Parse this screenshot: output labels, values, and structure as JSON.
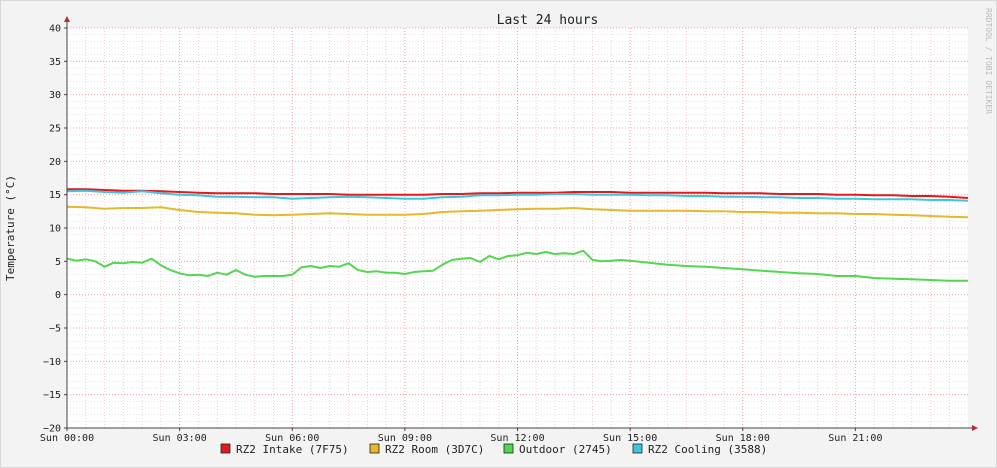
{
  "chart_data": {
    "type": "line",
    "title": "Last 24 hours",
    "ylabel": "Temperature (°C)",
    "xlabel": "",
    "ylim": [
      -20,
      40
    ],
    "y_ticks": [
      40,
      35,
      30,
      25,
      20,
      15,
      10,
      5,
      0,
      -5,
      -10,
      -15,
      -20
    ],
    "y_tick_labels": [
      "40",
      "35",
      "30",
      "25",
      "20",
      "15",
      "10",
      "5",
      "0",
      "−5",
      "−10",
      "−15",
      "−20"
    ],
    "x_unit": "hours since Sun 00:00",
    "xlim": [
      0,
      24
    ],
    "x_ticks": [
      0,
      3,
      6,
      9,
      12,
      15,
      18,
      21
    ],
    "x_tick_labels": [
      "Sun 00:00",
      "Sun 03:00",
      "Sun 06:00",
      "Sun 09:00",
      "Sun 12:00",
      "Sun 15:00",
      "Sun 18:00",
      "Sun 21:00"
    ],
    "grid": true,
    "legend_position": "bottom",
    "series": [
      {
        "name": "RZ2 Intake (7F75)",
        "color": "#e31a1c",
        "x": [
          0,
          0.5,
          1,
          1.5,
          2,
          2.5,
          3,
          3.5,
          4,
          4.5,
          5,
          5.5,
          6,
          6.5,
          7,
          7.5,
          8,
          8.5,
          9,
          9.5,
          10,
          10.5,
          11,
          11.5,
          12,
          12.5,
          13,
          13.5,
          14,
          14.5,
          15,
          15.5,
          16,
          16.5,
          17,
          17.5,
          18,
          18.5,
          19,
          19.5,
          20,
          20.5,
          21,
          21.5,
          22,
          22.5,
          23,
          23.5,
          24
        ],
        "y": [
          15.8,
          15.8,
          15.7,
          15.6,
          15.6,
          15.5,
          15.4,
          15.3,
          15.2,
          15.2,
          15.2,
          15.1,
          15.1,
          15.1,
          15.1,
          15.0,
          15.0,
          15.0,
          15.0,
          15.0,
          15.1,
          15.1,
          15.2,
          15.2,
          15.3,
          15.3,
          15.3,
          15.4,
          15.4,
          15.4,
          15.3,
          15.3,
          15.3,
          15.3,
          15.3,
          15.2,
          15.2,
          15.2,
          15.1,
          15.1,
          15.1,
          15.0,
          15.0,
          14.9,
          14.9,
          14.8,
          14.8,
          14.7,
          14.5
        ]
      },
      {
        "name": "RZ2 Room (3D7C)",
        "color": "#e6b92a",
        "x": [
          0,
          0.5,
          1,
          1.5,
          2,
          2.5,
          3,
          3.5,
          4,
          4.5,
          5,
          5.5,
          6,
          6.5,
          7,
          7.5,
          8,
          8.5,
          9,
          9.5,
          10,
          10.5,
          11,
          11.5,
          12,
          12.5,
          13,
          13.5,
          14,
          14.5,
          15,
          15.5,
          16,
          16.5,
          17,
          17.5,
          18,
          18.5,
          19,
          19.5,
          20,
          20.5,
          21,
          21.5,
          22,
          22.5,
          23,
          23.5,
          24
        ],
        "y": [
          13.2,
          13.1,
          12.9,
          13.0,
          13.0,
          13.1,
          12.7,
          12.4,
          12.3,
          12.2,
          12.0,
          11.9,
          12.0,
          12.1,
          12.2,
          12.1,
          12.0,
          12.0,
          12.0,
          12.1,
          12.4,
          12.5,
          12.6,
          12.7,
          12.8,
          12.9,
          12.9,
          13.0,
          12.8,
          12.7,
          12.6,
          12.6,
          12.6,
          12.6,
          12.5,
          12.5,
          12.4,
          12.4,
          12.3,
          12.3,
          12.2,
          12.2,
          12.1,
          12.1,
          12.0,
          11.9,
          11.8,
          11.7,
          11.6
        ]
      },
      {
        "name": "Outdoor (2745)",
        "color": "#55d651",
        "x": [
          0,
          0.25,
          0.5,
          0.75,
          1,
          1.25,
          1.5,
          1.75,
          2,
          2.25,
          2.5,
          2.75,
          3,
          3.25,
          3.5,
          3.75,
          4,
          4.25,
          4.5,
          4.75,
          5,
          5.25,
          5.5,
          5.75,
          6,
          6.25,
          6.5,
          6.75,
          7,
          7.25,
          7.5,
          7.75,
          8,
          8.25,
          8.5,
          8.75,
          9,
          9.25,
          9.5,
          9.75,
          10,
          10.25,
          10.5,
          10.75,
          11,
          11.25,
          11.5,
          11.75,
          12,
          12.25,
          12.5,
          12.75,
          13,
          13.25,
          13.5,
          13.75,
          14,
          14.25,
          14.5,
          14.75,
          15,
          15.5,
          16,
          16.5,
          17,
          17.5,
          18,
          18.5,
          19,
          19.5,
          20,
          20.5,
          21,
          21.5,
          22,
          22.5,
          23,
          23.5,
          24
        ],
        "y": [
          5.4,
          5.1,
          5.3,
          5.0,
          4.2,
          4.8,
          4.7,
          4.9,
          4.8,
          5.4,
          4.4,
          3.7,
          3.2,
          2.9,
          3.0,
          2.8,
          3.3,
          3.0,
          3.7,
          3.0,
          2.7,
          2.8,
          2.8,
          2.8,
          3.0,
          4.1,
          4.3,
          4.0,
          4.3,
          4.2,
          4.7,
          3.7,
          3.4,
          3.5,
          3.3,
          3.3,
          3.1,
          3.4,
          3.5,
          3.6,
          4.5,
          5.2,
          5.4,
          5.5,
          4.9,
          5.8,
          5.3,
          5.8,
          5.9,
          6.3,
          6.1,
          6.4,
          6.1,
          6.2,
          6.1,
          6.6,
          5.2,
          5.0,
          5.1,
          5.2,
          5.1,
          4.8,
          4.5,
          4.3,
          4.2,
          4.0,
          3.8,
          3.6,
          3.4,
          3.2,
          3.1,
          2.8,
          2.8,
          2.5,
          2.4,
          2.3,
          2.2,
          2.1,
          2.1
        ]
      },
      {
        "name": "RZ2 Cooling (3588)",
        "color": "#41c4e0",
        "x": [
          0,
          0.5,
          1,
          1.5,
          2,
          2.5,
          3,
          3.5,
          4,
          4.5,
          5,
          5.5,
          6,
          6.5,
          7,
          7.5,
          8,
          8.5,
          9,
          9.5,
          10,
          10.5,
          11,
          11.5,
          12,
          12.5,
          13,
          13.5,
          14,
          14.5,
          15,
          15.5,
          16,
          16.5,
          17,
          17.5,
          18,
          18.5,
          19,
          19.5,
          20,
          20.5,
          21,
          21.5,
          22,
          22.5,
          23,
          23.5,
          24
        ],
        "y": [
          15.5,
          15.6,
          15.4,
          15.3,
          15.5,
          15.2,
          15.0,
          14.9,
          14.7,
          14.7,
          14.6,
          14.6,
          14.4,
          14.5,
          14.6,
          14.7,
          14.6,
          14.5,
          14.4,
          14.4,
          14.6,
          14.7,
          14.9,
          14.9,
          15.0,
          15.0,
          15.1,
          15.1,
          15.0,
          15.0,
          15.0,
          14.9,
          14.9,
          14.8,
          14.8,
          14.7,
          14.7,
          14.6,
          14.6,
          14.5,
          14.5,
          14.4,
          14.4,
          14.3,
          14.3,
          14.3,
          14.2,
          14.2,
          14.1
        ]
      }
    ],
    "watermark": "RRDTOOL / TOBI OETIKER"
  }
}
